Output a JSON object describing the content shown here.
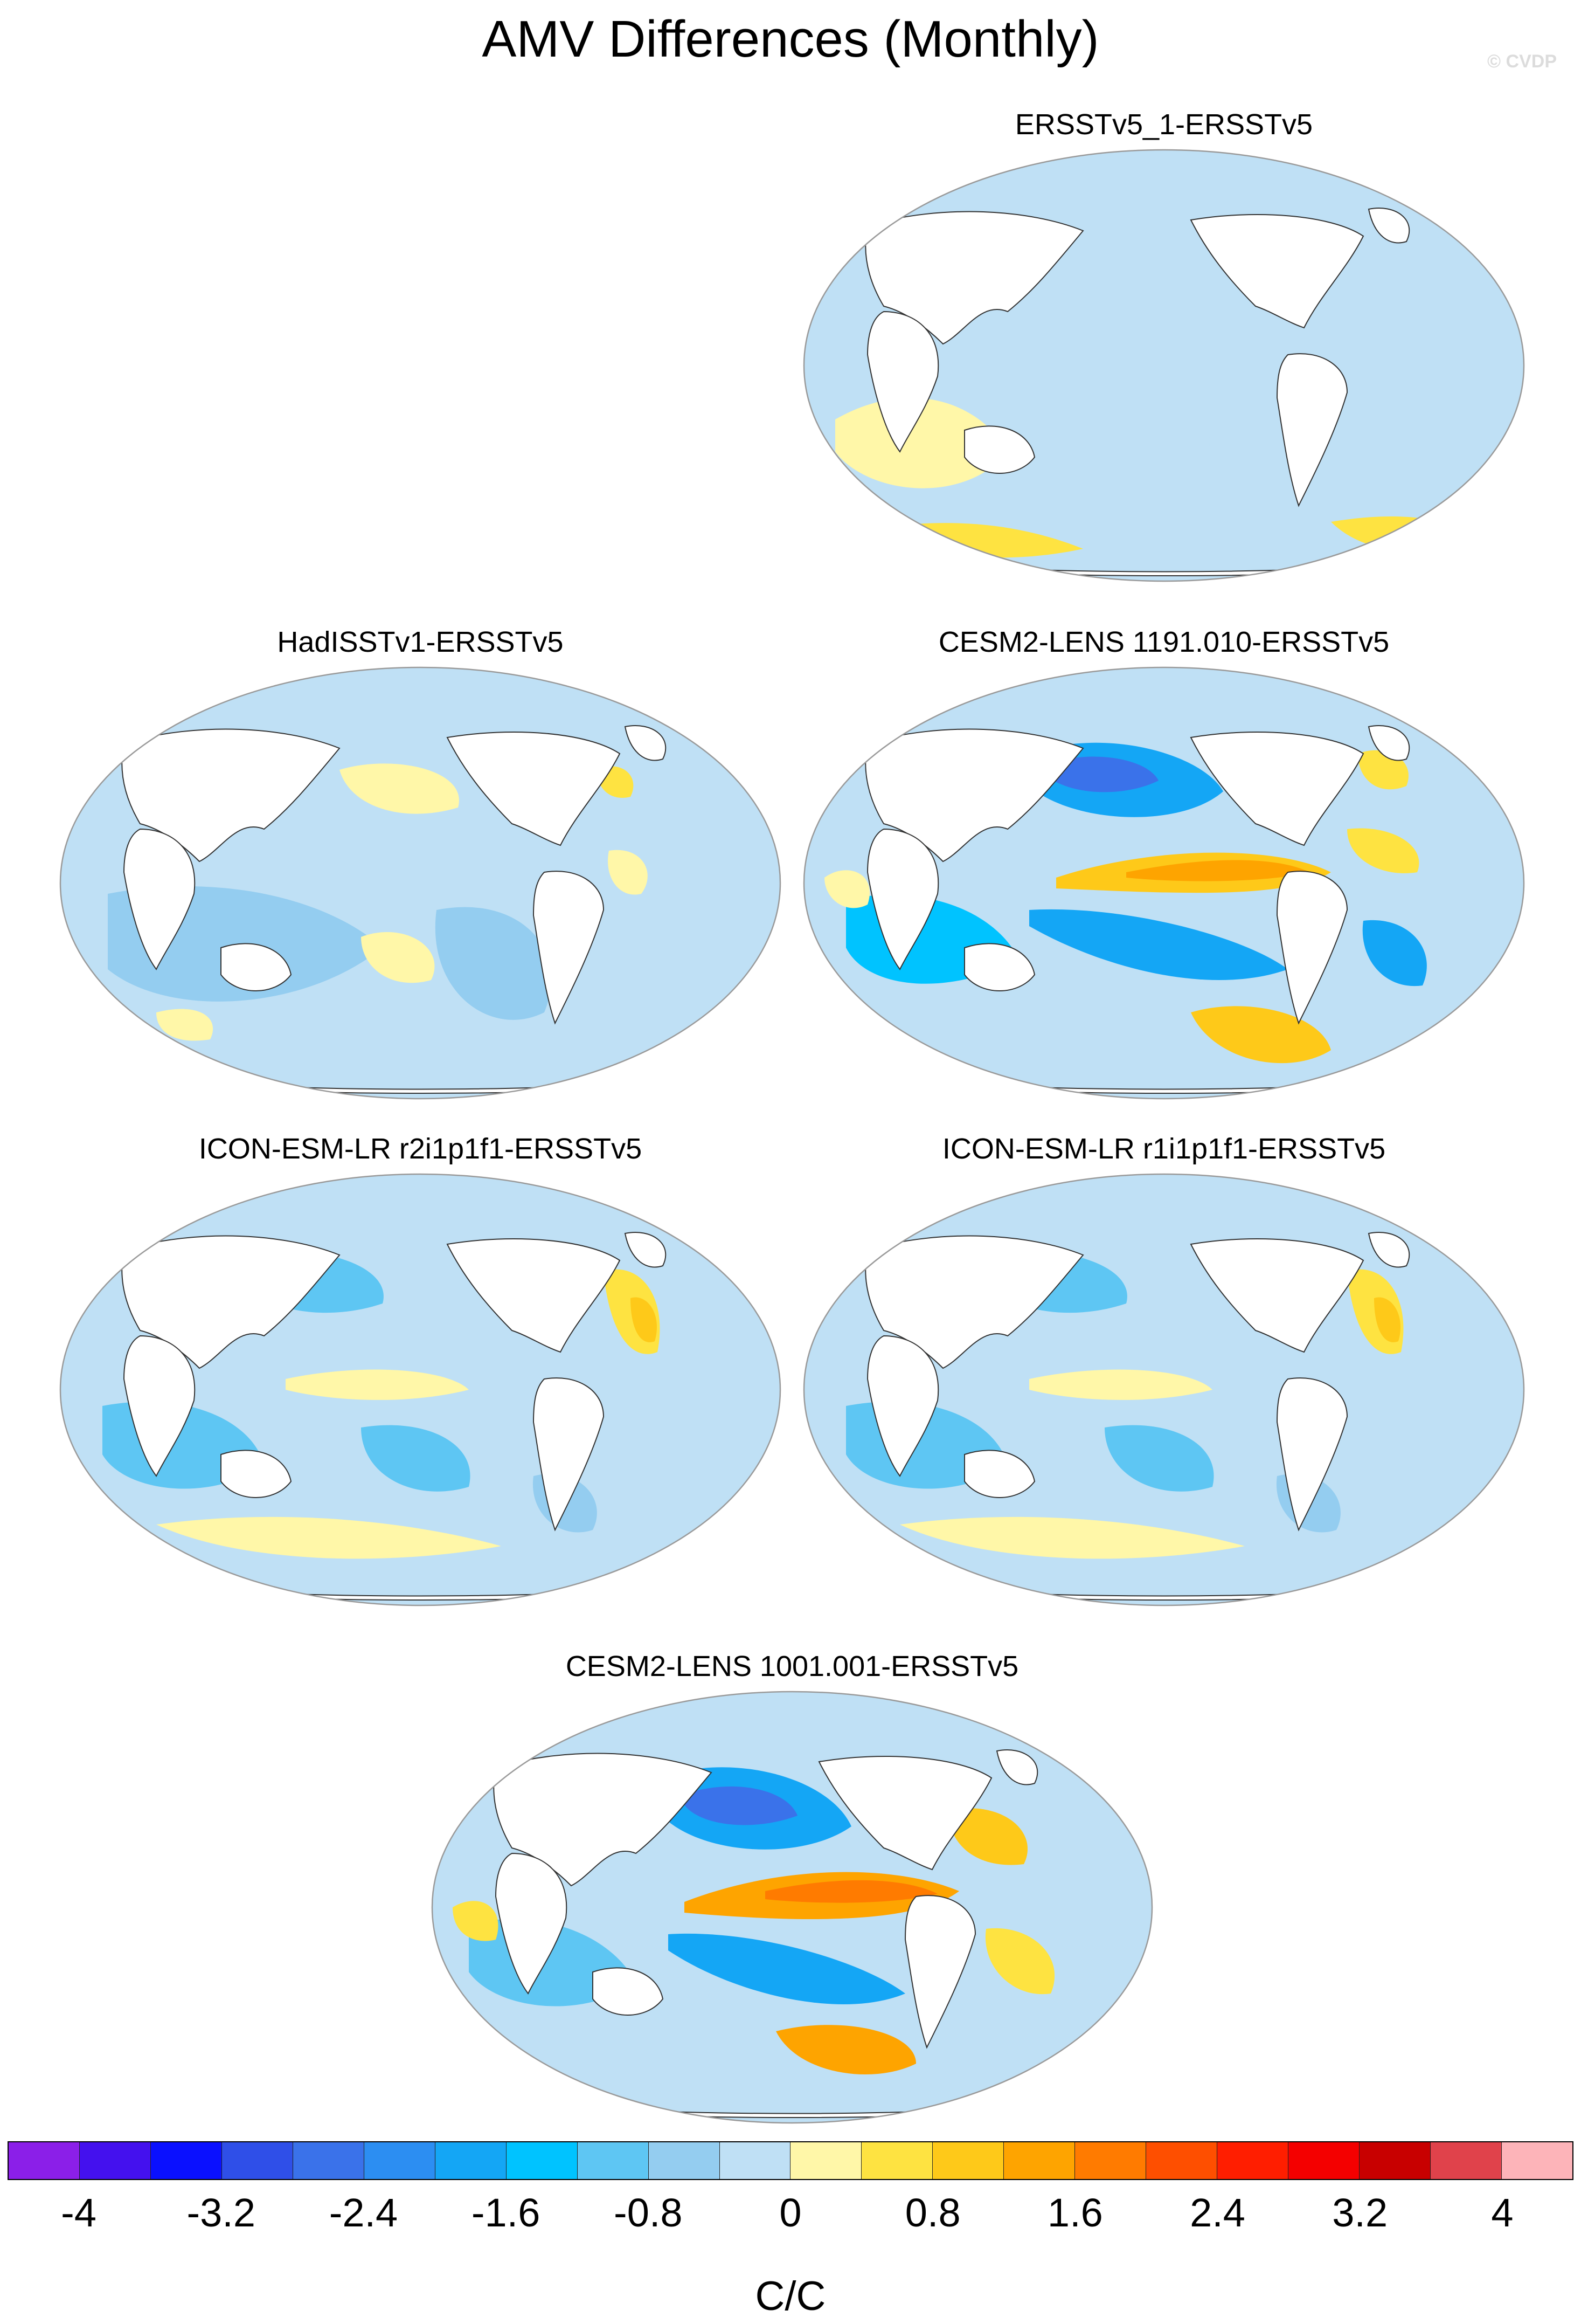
{
  "title": "AMV Differences (Monthly)",
  "watermark": "© CVDP",
  "colors": {
    "ocean_neutral_neg": "#bfe0f5",
    "ocean_neutral_pos": "#fff7a8",
    "land": "#ffffff",
    "coast": "#333333"
  },
  "panels": [
    {
      "title": "ERSSTv5_1-ERSSTv5",
      "pattern": "weak"
    },
    {
      "title": "HadISSTv1-ERSSTv5",
      "pattern": "cool"
    },
    {
      "title": "CESM2-LENS 1191.010-ERSSTv5",
      "pattern": "enso"
    },
    {
      "title": "ICON-ESM-LR r2i1p1f1-ERSSTv5",
      "pattern": "cool-band"
    },
    {
      "title": "ICON-ESM-LR r1i1p1f1-ERSSTv5",
      "pattern": "cool-band"
    },
    {
      "title": "CESM2-LENS 1001.001-ERSSTv5",
      "pattern": "enso-strong"
    }
  ],
  "colorbar": {
    "units": "C/C",
    "colors": [
      "#8b1fe8",
      "#4411ee",
      "#0a10ff",
      "#2f4fe8",
      "#3a72ea",
      "#2c8ef2",
      "#14a6f5",
      "#00c3ff",
      "#5ec6f3",
      "#94cdf0",
      "#bfe0f5",
      "#fff7a8",
      "#fee341",
      "#fec919",
      "#fea400",
      "#ff7b00",
      "#fe4f00",
      "#ff1e00",
      "#f40000",
      "#c80000",
      "#e0424b",
      "#fdb4b9"
    ],
    "tick_labels": [
      "-4",
      "-3.2",
      "-2.4",
      "-1.6",
      "-0.8",
      "0",
      "0.8",
      "1.6",
      "2.4",
      "3.2",
      "4"
    ]
  }
}
